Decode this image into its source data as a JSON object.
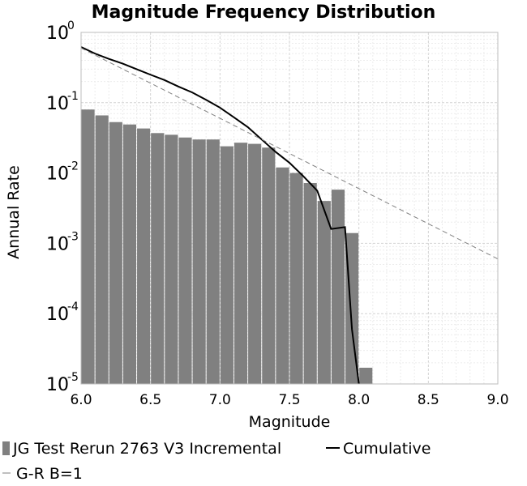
{
  "chart_data": {
    "type": "bar",
    "title": "Magnitude Frequency Distribution",
    "xlabel": "Magnitude",
    "ylabel": "Annual Rate",
    "xlim": [
      6.0,
      9.0
    ],
    "ylim": [
      1e-05,
      1
    ],
    "yscale": "log",
    "grid": true,
    "legend_position": "bottom",
    "x_ticks": [
      "6.0",
      "6.5",
      "7.0",
      "7.5",
      "8.0",
      "8.5",
      "9.0"
    ],
    "y_ticks": [
      {
        "base": "10",
        "exp": "0",
        "value": 1
      },
      {
        "base": "10",
        "exp": "-1",
        "value": 0.1
      },
      {
        "base": "10",
        "exp": "-2",
        "value": 0.01
      },
      {
        "base": "10",
        "exp": "-3",
        "value": 0.001
      },
      {
        "base": "10",
        "exp": "-4",
        "value": 0.0001
      },
      {
        "base": "10",
        "exp": "-5",
        "value": 1e-05
      }
    ],
    "bin_width": 0.1,
    "series": [
      {
        "name": "JG Test Rerun 2763 V3 Incremental",
        "kind": "bar",
        "color": "#808080",
        "x": [
          6.05,
          6.15,
          6.25,
          6.35,
          6.45,
          6.55,
          6.65,
          6.75,
          6.85,
          6.95,
          7.05,
          7.15,
          7.25,
          7.35,
          7.45,
          7.55,
          7.65,
          7.75,
          7.85,
          7.95,
          8.05
        ],
        "values": [
          0.08,
          0.066,
          0.053,
          0.049,
          0.043,
          0.037,
          0.035,
          0.032,
          0.03,
          0.03,
          0.024,
          0.027,
          0.026,
          0.023,
          0.012,
          0.01,
          0.0072,
          0.004,
          0.0058,
          0.0014,
          1.7e-05
        ]
      },
      {
        "name": "Cumulative",
        "kind": "line",
        "color": "#000000",
        "x": [
          6.0,
          6.1,
          6.2,
          6.3,
          6.4,
          6.5,
          6.6,
          6.7,
          6.8,
          6.9,
          7.0,
          7.1,
          7.2,
          7.3,
          7.4,
          7.5,
          7.6,
          7.7,
          7.8,
          7.9,
          7.95,
          8.0
        ],
        "values": [
          0.62,
          0.5,
          0.42,
          0.36,
          0.3,
          0.25,
          0.21,
          0.17,
          0.14,
          0.11,
          0.085,
          0.062,
          0.045,
          0.03,
          0.02,
          0.014,
          0.009,
          0.0056,
          0.0016,
          0.0017,
          6e-05,
          1e-05
        ]
      },
      {
        "name": "G-R B=1",
        "kind": "dashed-line",
        "color": "#808080",
        "x": [
          6.0,
          9.0
        ],
        "values": [
          0.6,
          0.0006
        ]
      }
    ]
  }
}
